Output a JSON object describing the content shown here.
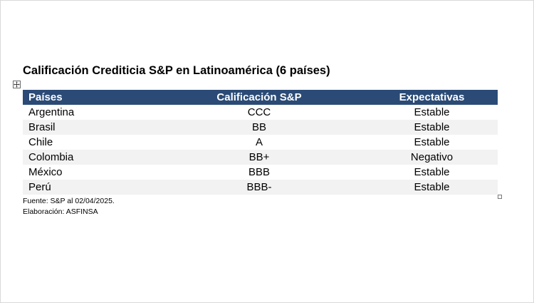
{
  "document": {
    "title": "Calificación Crediticia S&P en Latinoamérica (6 países)",
    "table": {
      "headers": [
        "Países",
        "Calificación S&P",
        "Expectativas"
      ],
      "rows": [
        {
          "country": "Argentina",
          "rating": "CCC",
          "outlook": "Estable"
        },
        {
          "country": "Brasil",
          "rating": "BB",
          "outlook": "Estable"
        },
        {
          "country": "Chile",
          "rating": "A",
          "outlook": "Estable"
        },
        {
          "country": "Colombia",
          "rating": "BB+",
          "outlook": "Negativo"
        },
        {
          "country": "México",
          "rating": "BBB",
          "outlook": "Estable"
        },
        {
          "country": "Perú",
          "rating": "BBB-",
          "outlook": "Estable"
        }
      ]
    },
    "source": "Fuente: S&P al 02/04/2025.",
    "credit": "Elaboración: ASFINSA"
  },
  "colors": {
    "header_background": "#2b4b76",
    "header_text": "#ffffff",
    "zebra_row": "#f2f2f2"
  },
  "icons": {
    "table_move_handle": "move-arrows-icon",
    "table_resize_handle": "resize-handle-icon"
  }
}
